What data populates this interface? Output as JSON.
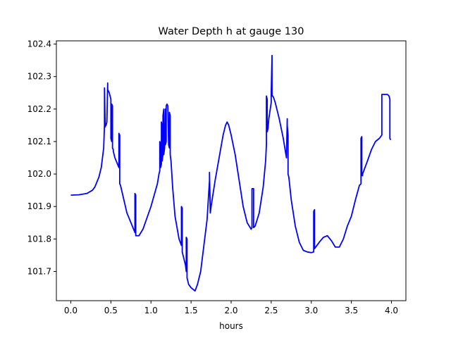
{
  "chart_data": {
    "type": "line",
    "title": "Water Depth h at gauge 130",
    "xlabel": "hours",
    "ylabel": "",
    "xlim": [
      -0.18,
      4.18
    ],
    "ylim": [
      101.61,
      102.41
    ],
    "xticks": [
      0.0,
      0.5,
      1.0,
      1.5,
      2.0,
      2.5,
      3.0,
      3.5,
      4.0
    ],
    "xtick_labels": [
      "0.0",
      "0.5",
      "1.0",
      "1.5",
      "2.0",
      "2.5",
      "3.0",
      "3.5",
      "4.0"
    ],
    "yticks": [
      101.7,
      101.8,
      101.9,
      102.0,
      102.1,
      102.2,
      102.3,
      102.4
    ],
    "ytick_labels": [
      "101.7",
      "101.8",
      "101.9",
      "102.0",
      "102.1",
      "102.2",
      "102.3",
      "102.4"
    ],
    "grid": false,
    "series": [
      {
        "color": "#0000ff",
        "x": [
          0.0,
          0.1,
          0.2,
          0.27,
          0.3,
          0.35,
          0.38,
          0.41,
          0.42,
          0.42,
          0.43,
          0.43,
          0.44,
          0.45,
          0.46,
          0.46,
          0.48,
          0.5,
          0.5,
          0.51,
          0.51,
          0.52,
          0.52,
          0.53,
          0.53,
          0.55,
          0.6,
          0.6,
          0.61,
          0.61,
          0.62,
          0.7,
          0.8,
          0.8,
          0.81,
          0.81,
          0.82,
          0.85,
          0.9,
          1.0,
          1.08,
          1.1,
          1.11,
          1.11,
          1.12,
          1.12,
          1.13,
          1.13,
          1.14,
          1.14,
          1.15,
          1.15,
          1.16,
          1.16,
          1.17,
          1.18,
          1.18,
          1.19,
          1.19,
          1.2,
          1.21,
          1.22,
          1.23,
          1.23,
          1.24,
          1.24,
          1.25,
          1.26,
          1.27,
          1.3,
          1.35,
          1.38,
          1.38,
          1.39,
          1.39,
          1.41,
          1.43,
          1.44,
          1.44,
          1.45,
          1.45,
          1.47,
          1.5,
          1.55,
          1.58,
          1.62,
          1.66,
          1.7,
          1.73,
          1.73,
          1.74,
          1.74,
          1.75,
          1.8,
          1.85,
          1.9,
          1.93,
          1.95,
          1.97,
          2.0,
          2.05,
          2.1,
          2.15,
          2.2,
          2.25,
          2.26,
          2.26,
          2.28,
          2.28,
          2.3,
          2.35,
          2.4,
          2.43,
          2.44,
          2.44,
          2.45,
          2.45,
          2.46,
          2.47,
          2.5,
          2.5,
          2.51,
          2.51,
          2.52,
          2.53,
          2.55,
          2.6,
          2.65,
          2.69,
          2.7,
          2.7,
          2.71,
          2.71,
          2.72,
          2.75,
          2.8,
          2.85,
          2.9,
          2.95,
          3.0,
          3.03,
          3.03,
          3.04,
          3.04,
          3.1,
          3.15,
          3.2,
          3.25,
          3.3,
          3.35,
          3.4,
          3.45,
          3.5,
          3.55,
          3.6,
          3.62,
          3.62,
          3.63,
          3.63,
          3.64,
          3.64,
          3.7,
          3.75,
          3.8,
          3.85,
          3.88,
          3.88,
          3.9,
          3.93,
          3.95,
          3.97,
          3.97,
          3.98,
          3.98,
          3.99
        ],
        "y": [
          101.935,
          101.936,
          101.94,
          101.95,
          101.96,
          101.99,
          102.02,
          102.08,
          102.15,
          102.265,
          102.145,
          102.15,
          102.15,
          102.16,
          102.28,
          102.26,
          102.25,
          102.23,
          102.11,
          102.1,
          102.215,
          102.21,
          102.08,
          102.075,
          102.07,
          102.05,
          102.02,
          102.125,
          102.12,
          101.97,
          101.965,
          101.88,
          101.82,
          101.94,
          101.935,
          101.81,
          101.81,
          101.81,
          101.83,
          101.9,
          101.97,
          102.0,
          102.01,
          102.1,
          102.09,
          102.02,
          102.03,
          102.16,
          102.15,
          102.04,
          102.06,
          102.18,
          102.2,
          102.06,
          102.08,
          102.2,
          102.09,
          102.1,
          102.21,
          102.215,
          102.21,
          102.09,
          102.08,
          102.19,
          102.18,
          102.06,
          102.04,
          102.0,
          101.96,
          101.87,
          101.8,
          101.78,
          101.9,
          101.895,
          101.76,
          101.74,
          101.72,
          101.7,
          101.805,
          101.8,
          101.68,
          101.66,
          101.65,
          101.64,
          101.66,
          101.7,
          101.78,
          101.86,
          101.98,
          102.005,
          101.88,
          101.88,
          101.9,
          101.98,
          102.05,
          102.12,
          102.15,
          102.16,
          102.15,
          102.12,
          102.06,
          101.98,
          101.9,
          101.85,
          101.83,
          101.835,
          101.955,
          101.955,
          101.835,
          101.84,
          101.88,
          101.96,
          102.04,
          102.09,
          102.24,
          102.23,
          102.13,
          102.14,
          102.17,
          102.22,
          102.25,
          102.365,
          102.24,
          102.24,
          102.235,
          102.22,
          102.17,
          102.11,
          102.05,
          102.17,
          102.15,
          102.12,
          102.0,
          101.99,
          101.92,
          101.84,
          101.79,
          101.765,
          101.76,
          101.758,
          101.76,
          101.885,
          101.89,
          101.77,
          101.79,
          101.805,
          101.81,
          101.795,
          101.775,
          101.775,
          101.8,
          101.84,
          101.87,
          101.92,
          101.965,
          101.97,
          102.11,
          102.115,
          101.995,
          101.995,
          102.0,
          102.04,
          102.075,
          102.1,
          102.11,
          102.12,
          102.245,
          102.245,
          102.245,
          102.245,
          102.24,
          102.24,
          102.23,
          102.11,
          102.105
        ]
      }
    ]
  }
}
